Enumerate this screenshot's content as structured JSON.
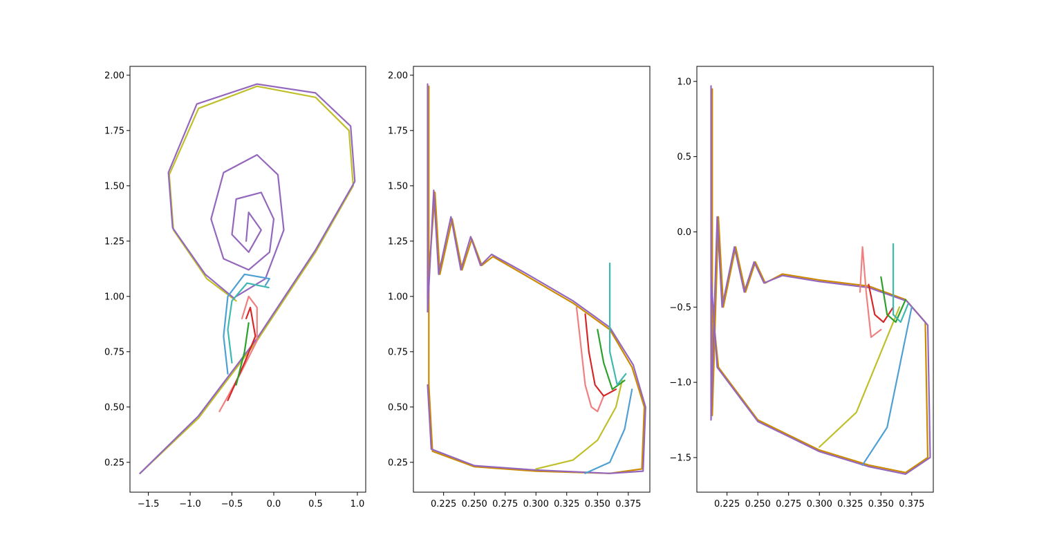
{
  "chart_data": [
    {
      "type": "line",
      "title": "",
      "xlabel": "",
      "ylabel": "",
      "xlim": [
        -1.72,
        1.1
      ],
      "ylim": [
        0.115,
        2.04
      ],
      "xticks": [
        -1.5,
        -1.0,
        -0.5,
        0.0,
        0.5,
        1.0
      ],
      "xtick_labels": [
        "−1.5",
        "−1.0",
        "−0.5",
        "0.0",
        "0.5",
        "1.0"
      ],
      "yticks": [
        0.25,
        0.5,
        0.75,
        1.0,
        1.25,
        1.5,
        1.75,
        2.0
      ],
      "ytick_labels": [
        "0.25",
        "0.50",
        "0.75",
        "1.00",
        "1.25",
        "1.50",
        "1.75",
        "2.00"
      ],
      "series": [
        {
          "color": "#bfbf2a",
          "points": [
            [
              -1.6,
              0.2
            ],
            [
              -0.9,
              0.45
            ],
            [
              -0.2,
              0.8
            ],
            [
              0.5,
              1.2
            ],
            [
              0.95,
              1.5
            ],
            [
              0.9,
              1.75
            ],
            [
              0.5,
              1.9
            ],
            [
              -0.2,
              1.95
            ],
            [
              -0.9,
              1.85
            ],
            [
              -1.25,
              1.55
            ],
            [
              -1.2,
              1.3
            ],
            [
              -0.8,
              1.08
            ],
            [
              -0.45,
              0.98
            ]
          ]
        },
        {
          "color": "#9467bd",
          "points": [
            [
              -1.6,
              0.2
            ],
            [
              -0.9,
              0.46
            ],
            [
              -0.2,
              0.81
            ],
            [
              0.5,
              1.21
            ],
            [
              0.97,
              1.52
            ],
            [
              0.92,
              1.77
            ],
            [
              0.5,
              1.92
            ],
            [
              -0.2,
              1.96
            ],
            [
              -0.92,
              1.87
            ],
            [
              -1.26,
              1.56
            ],
            [
              -1.21,
              1.31
            ],
            [
              -0.82,
              1.1
            ],
            [
              -0.47,
              0.99
            ]
          ]
        },
        {
          "color": "#9467bd",
          "points": [
            [
              -0.45,
              1.0
            ],
            [
              -0.1,
              1.08
            ],
            [
              0.12,
              1.3
            ],
            [
              0.05,
              1.55
            ],
            [
              -0.2,
              1.64
            ],
            [
              -0.6,
              1.56
            ],
            [
              -0.75,
              1.35
            ],
            [
              -0.6,
              1.17
            ],
            [
              -0.3,
              1.12
            ],
            [
              -0.05,
              1.2
            ],
            [
              0.0,
              1.35
            ],
            [
              -0.15,
              1.47
            ],
            [
              -0.45,
              1.44
            ],
            [
              -0.5,
              1.28
            ],
            [
              -0.3,
              1.2
            ],
            [
              -0.15,
              1.3
            ],
            [
              -0.3,
              1.38
            ],
            [
              -0.33,
              1.25
            ]
          ]
        },
        {
          "color": "#4d9fd4",
          "points": [
            [
              -0.55,
              0.65
            ],
            [
              -0.6,
              0.82
            ],
            [
              -0.55,
              1.0
            ],
            [
              -0.35,
              1.1
            ],
            [
              -0.05,
              1.08
            ],
            [
              -0.1,
              1.05
            ]
          ]
        },
        {
          "color": "#3fb8b0",
          "points": [
            [
              -0.5,
              0.7
            ],
            [
              -0.55,
              0.85
            ],
            [
              -0.5,
              0.98
            ],
            [
              -0.32,
              1.06
            ],
            [
              -0.06,
              1.04
            ]
          ]
        },
        {
          "color": "#f08080",
          "points": [
            [
              -0.65,
              0.48
            ],
            [
              -0.4,
              0.65
            ],
            [
              -0.2,
              0.8
            ],
            [
              -0.2,
              0.95
            ],
            [
              -0.3,
              1.0
            ],
            [
              -0.38,
              0.9
            ]
          ]
        },
        {
          "color": "#d62728",
          "points": [
            [
              -0.55,
              0.53
            ],
            [
              -0.35,
              0.7
            ],
            [
              -0.22,
              0.82
            ],
            [
              -0.28,
              0.95
            ],
            [
              -0.33,
              0.9
            ]
          ]
        },
        {
          "color": "#2ca02c",
          "points": [
            [
              -0.45,
              0.6
            ],
            [
              -0.35,
              0.75
            ],
            [
              -0.3,
              0.88
            ]
          ]
        }
      ]
    },
    {
      "type": "line",
      "title": "",
      "xlabel": "",
      "ylabel": "",
      "xlim": [
        0.2005,
        0.3925
      ],
      "ylim": [
        0.115,
        2.04
      ],
      "xticks": [
        0.225,
        0.25,
        0.275,
        0.3,
        0.325,
        0.35,
        0.375
      ],
      "xtick_labels": [
        "0.225",
        "0.250",
        "0.275",
        "0.300",
        "0.325",
        "0.350",
        "0.375"
      ],
      "yticks": [
        0.25,
        0.5,
        0.75,
        1.0,
        1.25,
        1.5,
        1.75,
        2.0
      ],
      "ytick_labels": [
        "0.25",
        "0.50",
        "0.75",
        "1.00",
        "1.25",
        "1.50",
        "1.75",
        "2.00"
      ],
      "series": [
        {
          "color": "#cc8a00",
          "points": [
            [
              0.213,
              1.95
            ],
            [
              0.213,
              1.1
            ],
            [
              0.218,
              1.47
            ],
            [
              0.222,
              1.1
            ],
            [
              0.232,
              1.35
            ],
            [
              0.24,
              1.12
            ],
            [
              0.248,
              1.26
            ],
            [
              0.256,
              1.14
            ],
            [
              0.265,
              1.18
            ],
            [
              0.29,
              1.1
            ],
            [
              0.33,
              0.97
            ],
            [
              0.36,
              0.85
            ],
            [
              0.378,
              0.68
            ],
            [
              0.388,
              0.5
            ],
            [
              0.386,
              0.22
            ],
            [
              0.36,
              0.2
            ],
            [
              0.3,
              0.21
            ],
            [
              0.25,
              0.23
            ],
            [
              0.216,
              0.3
            ],
            [
              0.213,
              0.6
            ],
            [
              0.213,
              1.95
            ]
          ]
        },
        {
          "color": "#9467bd",
          "points": [
            [
              0.212,
              1.96
            ],
            [
              0.212,
              0.93
            ],
            [
              0.217,
              1.48
            ],
            [
              0.221,
              1.1
            ],
            [
              0.231,
              1.36
            ],
            [
              0.239,
              1.12
            ],
            [
              0.247,
              1.27
            ],
            [
              0.255,
              1.14
            ],
            [
              0.264,
              1.19
            ],
            [
              0.29,
              1.11
            ],
            [
              0.33,
              0.98
            ],
            [
              0.36,
              0.86
            ],
            [
              0.379,
              0.69
            ],
            [
              0.389,
              0.5
            ],
            [
              0.387,
              0.21
            ],
            [
              0.36,
              0.2
            ],
            [
              0.3,
              0.215
            ],
            [
              0.25,
              0.235
            ],
            [
              0.215,
              0.31
            ],
            [
              0.212,
              0.6
            ]
          ]
        },
        {
          "color": "#bfbf2a",
          "points": [
            [
              0.3,
              0.22
            ],
            [
              0.33,
              0.26
            ],
            [
              0.35,
              0.35
            ],
            [
              0.365,
              0.5
            ],
            [
              0.37,
              0.62
            ]
          ]
        },
        {
          "color": "#4d9fd4",
          "points": [
            [
              0.34,
              0.2
            ],
            [
              0.36,
              0.25
            ],
            [
              0.372,
              0.4
            ],
            [
              0.378,
              0.58
            ]
          ]
        },
        {
          "color": "#f08080",
          "points": [
            [
              0.333,
              0.95
            ],
            [
              0.336,
              0.8
            ],
            [
              0.34,
              0.6
            ],
            [
              0.345,
              0.5
            ],
            [
              0.35,
              0.48
            ],
            [
              0.355,
              0.55
            ]
          ]
        },
        {
          "color": "#d62728",
          "points": [
            [
              0.34,
              0.92
            ],
            [
              0.343,
              0.75
            ],
            [
              0.348,
              0.6
            ],
            [
              0.355,
              0.55
            ],
            [
              0.365,
              0.58
            ]
          ]
        },
        {
          "color": "#2ca02c",
          "points": [
            [
              0.35,
              0.85
            ],
            [
              0.355,
              0.7
            ],
            [
              0.362,
              0.58
            ],
            [
              0.372,
              0.62
            ]
          ]
        },
        {
          "color": "#3fb8b0",
          "points": [
            [
              0.36,
              1.15
            ],
            [
              0.36,
              0.75
            ],
            [
              0.366,
              0.6
            ],
            [
              0.373,
              0.65
            ]
          ]
        }
      ]
    },
    {
      "type": "line",
      "title": "",
      "xlabel": "",
      "ylabel": "",
      "xlim": [
        0.2005,
        0.3925
      ],
      "ylim": [
        -1.73,
        1.1
      ],
      "xticks": [
        0.225,
        0.25,
        0.275,
        0.3,
        0.325,
        0.35,
        0.375
      ],
      "xtick_labels": [
        "0.225",
        "0.250",
        "0.275",
        "0.300",
        "0.325",
        "0.350",
        "0.375"
      ],
      "yticks": [
        -1.5,
        -1.0,
        -0.5,
        0.0,
        0.5,
        1.0
      ],
      "ytick_labels": [
        "−1.5",
        "−1.0",
        "−0.5",
        "0.0",
        "0.5",
        "1.0"
      ],
      "series": [
        {
          "color": "#cc8a00",
          "points": [
            [
              0.213,
              0.95
            ],
            [
              0.213,
              -1.22
            ],
            [
              0.218,
              0.1
            ],
            [
              0.222,
              -0.5
            ],
            [
              0.232,
              -0.1
            ],
            [
              0.24,
              -0.4
            ],
            [
              0.248,
              -0.2
            ],
            [
              0.256,
              -0.34
            ],
            [
              0.27,
              -0.28
            ],
            [
              0.3,
              -0.32
            ],
            [
              0.34,
              -0.36
            ],
            [
              0.37,
              -0.45
            ],
            [
              0.386,
              -0.6
            ],
            [
              0.388,
              -1.5
            ],
            [
              0.37,
              -1.6
            ],
            [
              0.34,
              -1.55
            ],
            [
              0.3,
              -1.45
            ],
            [
              0.25,
              -1.25
            ],
            [
              0.218,
              -0.9
            ],
            [
              0.213,
              -0.5
            ]
          ]
        },
        {
          "color": "#9467bd",
          "points": [
            [
              0.212,
              0.97
            ],
            [
              0.212,
              -1.25
            ],
            [
              0.217,
              0.1
            ],
            [
              0.221,
              -0.5
            ],
            [
              0.231,
              -0.1
            ],
            [
              0.239,
              -0.4
            ],
            [
              0.247,
              -0.2
            ],
            [
              0.255,
              -0.34
            ],
            [
              0.27,
              -0.29
            ],
            [
              0.3,
              -0.33
            ],
            [
              0.34,
              -0.37
            ],
            [
              0.371,
              -0.46
            ],
            [
              0.388,
              -0.62
            ],
            [
              0.39,
              -1.5
            ],
            [
              0.37,
              -1.61
            ],
            [
              0.34,
              -1.56
            ],
            [
              0.3,
              -1.46
            ],
            [
              0.25,
              -1.26
            ],
            [
              0.217,
              -0.9
            ],
            [
              0.212,
              -0.3
            ]
          ]
        },
        {
          "color": "#bfbf2a",
          "points": [
            [
              0.3,
              -1.43
            ],
            [
              0.33,
              -1.2
            ],
            [
              0.345,
              -0.9
            ],
            [
              0.355,
              -0.7
            ],
            [
              0.365,
              -0.5
            ]
          ]
        },
        {
          "color": "#4d9fd4",
          "points": [
            [
              0.335,
              -1.55
            ],
            [
              0.355,
              -1.3
            ],
            [
              0.365,
              -0.9
            ],
            [
              0.375,
              -0.5
            ]
          ]
        },
        {
          "color": "#f08080",
          "points": [
            [
              0.333,
              -0.4
            ],
            [
              0.335,
              -0.1
            ],
            [
              0.338,
              -0.4
            ],
            [
              0.342,
              -0.7
            ],
            [
              0.35,
              -0.65
            ]
          ]
        },
        {
          "color": "#d62728",
          "points": [
            [
              0.34,
              -0.35
            ],
            [
              0.345,
              -0.55
            ],
            [
              0.352,
              -0.6
            ],
            [
              0.36,
              -0.5
            ]
          ]
        },
        {
          "color": "#2ca02c",
          "points": [
            [
              0.35,
              -0.3
            ],
            [
              0.355,
              -0.55
            ],
            [
              0.362,
              -0.6
            ],
            [
              0.37,
              -0.45
            ]
          ]
        },
        {
          "color": "#3fb8b0",
          "points": [
            [
              0.36,
              -0.08
            ],
            [
              0.36,
              -0.55
            ],
            [
              0.366,
              -0.6
            ],
            [
              0.372,
              -0.48
            ]
          ]
        }
      ]
    }
  ]
}
